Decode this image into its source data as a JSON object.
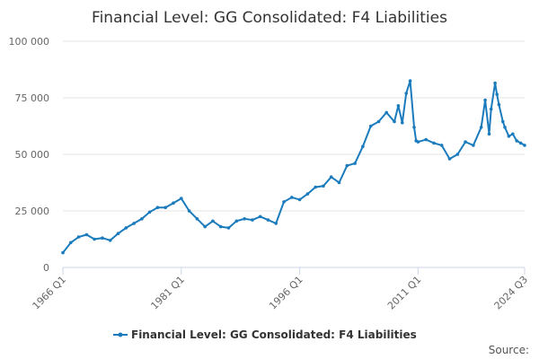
{
  "chart_data": {
    "type": "line",
    "title": "Financial Level: GG Consolidated: F4 Liabilities",
    "xlabel": "",
    "ylabel": "",
    "x_ticks": [
      "1966 Q1",
      "1981 Q1",
      "1996 Q1",
      "2011 Q1",
      "2024 Q3"
    ],
    "y_ticks": [
      "0",
      "25 000",
      "50 000",
      "75 000",
      "100 000"
    ],
    "ylim": [
      0,
      100000
    ],
    "xlim": [
      "1966 Q1",
      "2024 Q3"
    ],
    "grid": true,
    "legend": "bottom",
    "colors": {
      "series": "#1a7bbd",
      "grid": "#e6e6e6",
      "axis": "#ccd6eb"
    },
    "series": [
      {
        "name": "Financial Level: GG Consolidated: F4 Liabilities",
        "x": [
          "1966 Q1",
          "1967 Q1",
          "1968 Q1",
          "1969 Q1",
          "1970 Q1",
          "1971 Q1",
          "1972 Q1",
          "1973 Q1",
          "1974 Q1",
          "1975 Q1",
          "1976 Q1",
          "1977 Q1",
          "1978 Q1",
          "1979 Q1",
          "1980 Q1",
          "1981 Q1",
          "1982 Q1",
          "1983 Q1",
          "1984 Q1",
          "1985 Q1",
          "1986 Q1",
          "1987 Q1",
          "1988 Q1",
          "1989 Q1",
          "1990 Q1",
          "1991 Q1",
          "1992 Q1",
          "1993 Q1",
          "1994 Q1",
          "1995 Q1",
          "1996 Q1",
          "1997 Q1",
          "1998 Q1",
          "1999 Q1",
          "2000 Q1",
          "2001 Q1",
          "2002 Q1",
          "2003 Q1",
          "2004 Q1",
          "2005 Q1",
          "2006 Q1",
          "2007 Q1",
          "2008 Q1",
          "2008 Q3",
          "2009 Q1",
          "2009 Q3",
          "2010 Q1",
          "2010 Q3",
          "2010 Q4",
          "2011 Q1",
          "2012 Q1",
          "2013 Q1",
          "2014 Q1",
          "2015 Q1",
          "2016 Q1",
          "2017 Q1",
          "2018 Q1",
          "2019 Q1",
          "2019 Q3",
          "2020 Q1",
          "2020 Q2",
          "2020 Q4",
          "2021 Q1",
          "2021 Q2",
          "2021 Q4",
          "2022 Q1",
          "2022 Q3",
          "2023 Q1",
          "2023 Q3",
          "2024 Q1",
          "2024 Q3"
        ],
        "values": [
          6500,
          11000,
          13500,
          14500,
          12500,
          13000,
          12000,
          15000,
          17500,
          19500,
          21500,
          24500,
          26500,
          26500,
          28500,
          30500,
          25000,
          21500,
          18000,
          20500,
          18000,
          17500,
          20500,
          21500,
          21000,
          22500,
          21000,
          19500,
          29000,
          31000,
          30000,
          32500,
          35500,
          36000,
          40000,
          37500,
          45000,
          46000,
          53500,
          62500,
          64500,
          68500,
          64500,
          71500,
          64000,
          77000,
          82500,
          62000,
          56000,
          55500,
          56500,
          55000,
          54000,
          48000,
          50000,
          55500,
          54000,
          62000,
          74000,
          59000,
          70000,
          81500,
          76500,
          72000,
          64500,
          62000,
          58000,
          59000,
          56000,
          55000,
          54000
        ]
      }
    ]
  },
  "legend_label": "Financial Level: GG Consolidated: F4 Liabilities",
  "source_label": "Source:"
}
